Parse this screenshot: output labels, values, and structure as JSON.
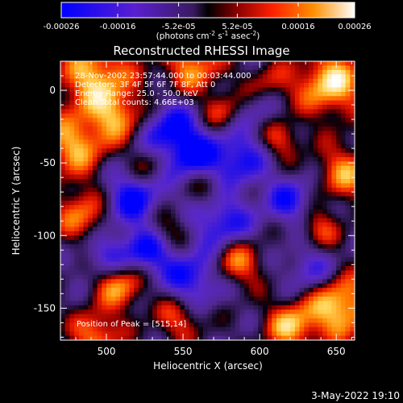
{
  "chart_data": {
    "type": "heatmap",
    "title": "Reconstructed RHESSI Image",
    "xlabel": "Heliocentric X (arcsec)",
    "ylabel": "Heliocentric Y (arcsec)",
    "xlim": [
      470,
      662
    ],
    "ylim": [
      -172,
      20
    ],
    "x_ticks": [
      500,
      550,
      600,
      650
    ],
    "y_ticks": [
      0,
      -50,
      -100,
      -150
    ],
    "colorbar": {
      "min": -0.00026,
      "max": 0.00026,
      "tick_values": [
        -0.00026,
        -0.00016,
        -5.2e-05,
        5.2e-05,
        0.00016,
        0.00026
      ],
      "tick_labels": [
        "-0.00026",
        "-0.00016",
        "-5.2e-05",
        "5.2e-05",
        "0.00016",
        "0.00026"
      ],
      "unit_label": "(photons cm",
      "unit_sup1": "-2",
      "unit_mid1": " s",
      "unit_sup2": "-1",
      "unit_mid2": " asec",
      "unit_sup3": "-2",
      "unit_end": ")"
    },
    "annotations": [
      "28-Nov-2002 23:57:44.000 to 00:03:44.000",
      "Detectors: 3F 4F 5F 6F 7F 8F, Att 0",
      "Energy Range: 25.0 - 50.0 keV",
      "Clean      Total counts: 4.66E+03"
    ],
    "peak_label": "Position of Peak = [515,14]",
    "grid": false
  },
  "footer": {
    "timestamp": "3-May-2022 19:10"
  }
}
